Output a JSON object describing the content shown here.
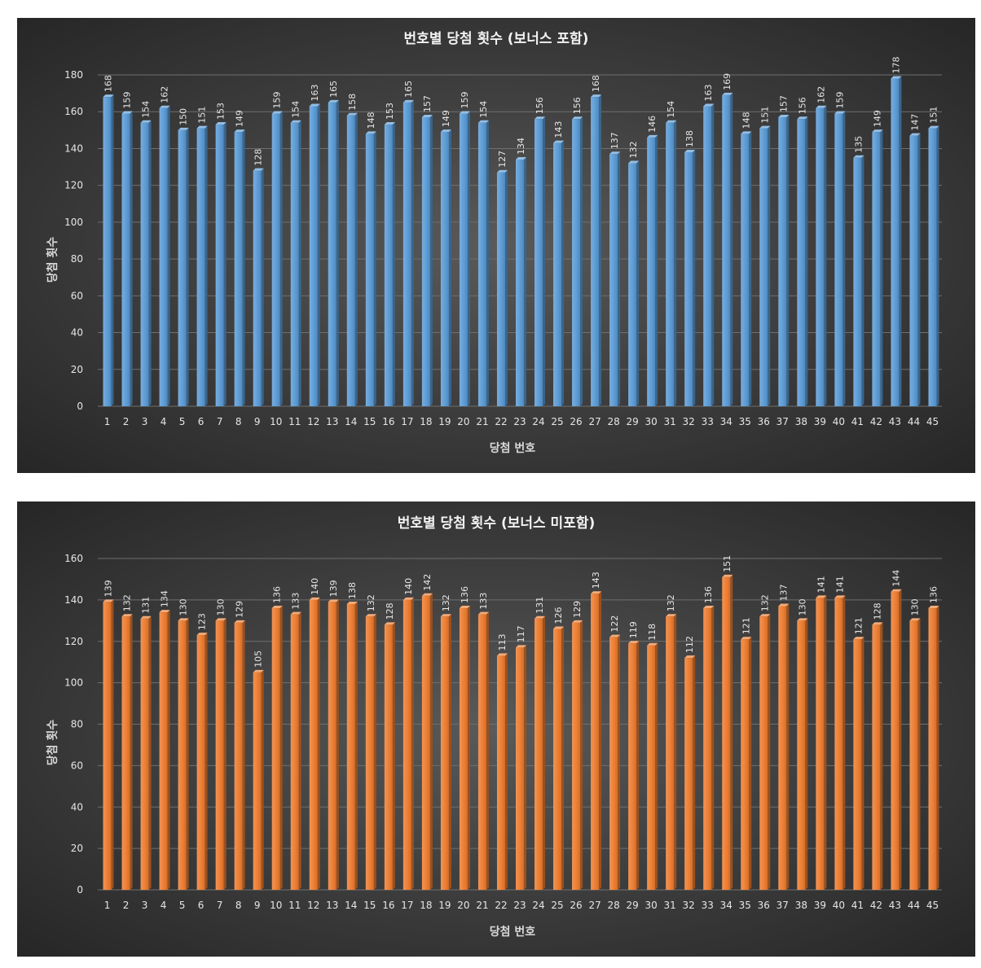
{
  "chart_data": [
    {
      "type": "bar",
      "title": "번호별 당첨 횟수 (보너스 포함)",
      "xlabel": "당첨 번호",
      "ylabel": "당첨 횟수",
      "ylim": [
        0,
        180
      ],
      "yticks": [
        0,
        20,
        40,
        60,
        80,
        100,
        120,
        140,
        160,
        180
      ],
      "grid": true,
      "color": "#5b9bd5",
      "categories": [
        "1",
        "2",
        "3",
        "4",
        "5",
        "6",
        "7",
        "8",
        "9",
        "10",
        "11",
        "12",
        "13",
        "14",
        "15",
        "16",
        "17",
        "18",
        "19",
        "20",
        "21",
        "22",
        "23",
        "24",
        "25",
        "26",
        "27",
        "28",
        "29",
        "30",
        "31",
        "32",
        "33",
        "34",
        "35",
        "36",
        "37",
        "38",
        "39",
        "40",
        "41",
        "42",
        "43",
        "44",
        "45"
      ],
      "values": [
        168,
        159,
        154,
        162,
        150,
        151,
        153,
        149,
        128,
        159,
        154,
        163,
        165,
        158,
        148,
        153,
        165,
        157,
        149,
        159,
        154,
        127,
        134,
        156,
        143,
        156,
        168,
        137,
        132,
        146,
        154,
        138,
        163,
        169,
        148,
        151,
        157,
        156,
        162,
        159,
        135,
        149,
        178,
        147,
        151
      ]
    },
    {
      "type": "bar",
      "title": "번호별 당첨 횟수 (보너스 미포함)",
      "xlabel": "당첨 번호",
      "ylabel": "당첨 횟수",
      "ylim": [
        0,
        160
      ],
      "yticks": [
        0,
        20,
        40,
        60,
        80,
        100,
        120,
        140,
        160
      ],
      "grid": true,
      "color": "#ed7d31",
      "categories": [
        "1",
        "2",
        "3",
        "4",
        "5",
        "6",
        "7",
        "8",
        "9",
        "10",
        "11",
        "12",
        "13",
        "14",
        "15",
        "16",
        "17",
        "18",
        "19",
        "20",
        "21",
        "22",
        "23",
        "24",
        "25",
        "26",
        "27",
        "28",
        "29",
        "30",
        "31",
        "32",
        "33",
        "34",
        "35",
        "36",
        "37",
        "38",
        "39",
        "40",
        "41",
        "42",
        "43",
        "44",
        "45"
      ],
      "values": [
        139,
        132,
        131,
        134,
        130,
        123,
        130,
        129,
        105,
        136,
        133,
        140,
        139,
        138,
        132,
        128,
        140,
        142,
        132,
        136,
        133,
        113,
        117,
        131,
        126,
        129,
        143,
        122,
        119,
        118,
        132,
        112,
        136,
        151,
        121,
        132,
        137,
        130,
        141,
        141,
        121,
        128,
        144,
        130,
        136
      ]
    }
  ]
}
